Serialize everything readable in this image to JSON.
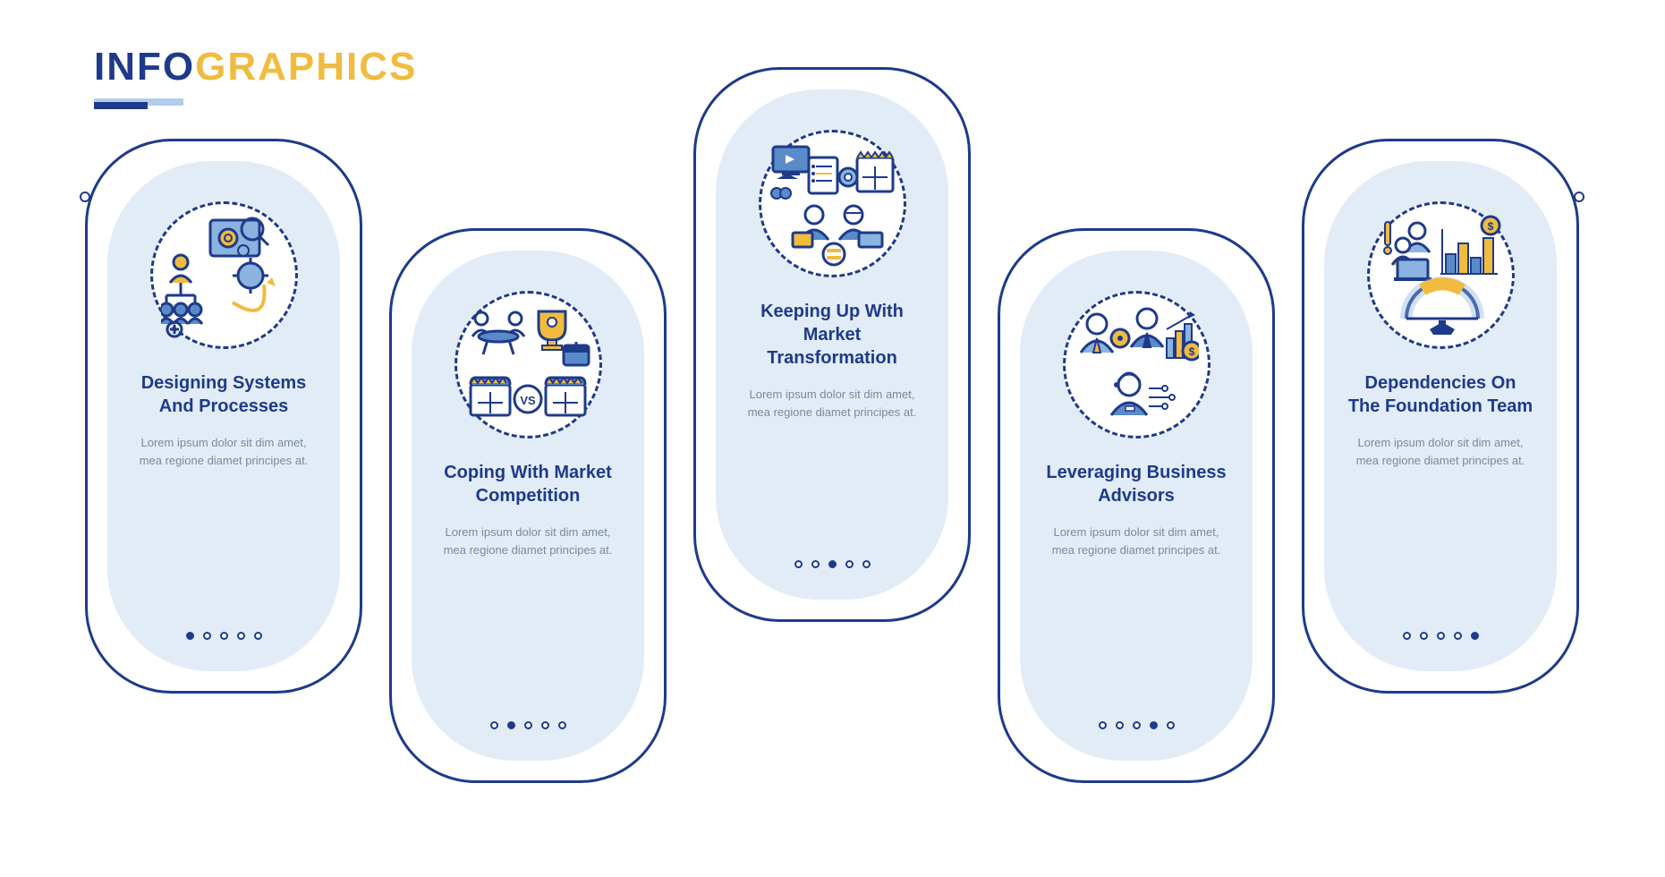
{
  "type": "infographic",
  "background_color": "#ffffff",
  "title": {
    "part1": "INFO",
    "part2": "GRAPHICS",
    "color1": "#1e3a8a",
    "color2": "#f0bb3f",
    "underline_light": "#b3cce9",
    "underline_dark": "#1e3a8a"
  },
  "palette": {
    "primary": "#1e3a8a",
    "accent": "#f0bb3f",
    "light_blue": "#e2ecf7",
    "icon_blue": "#5a8bc9",
    "icon_light_blue": "#8ab3e0",
    "grey_text": "#7a8a9a",
    "white": "#ffffff"
  },
  "card_style": {
    "outer_border_color": "#1e3a8a",
    "outer_border_width": 3,
    "outer_radius": 100,
    "inner_fill": "#e2ecf7",
    "inner_radius": 115,
    "title_fontsize": 20,
    "title_color": "#1e3a8a",
    "desc_fontsize": 13,
    "desc_color": "#7a8a9a",
    "icon_dash_color": "#1e3a8a"
  },
  "cards": [
    {
      "title": "Designing Systems And Processes",
      "desc": "Lorem ipsum dolor sit dim amet, mea regione diamet principes at.",
      "active_dot": 0,
      "offset": "up",
      "icon": "systems"
    },
    {
      "title": "Coping With Market Competition",
      "desc": "Lorem ipsum dolor sit dim amet, mea regione diamet principes at.",
      "active_dot": 1,
      "offset": "down",
      "icon": "competition"
    },
    {
      "title": "Keeping Up With Market Transformation",
      "desc": "Lorem ipsum dolor sit dim amet, mea regione diamet principes at.",
      "active_dot": 2,
      "offset": "c3",
      "icon": "transformation"
    },
    {
      "title": "Leveraging Business Advisors",
      "desc": "Lorem ipsum dolor sit dim amet, mea regione diamet principes at.",
      "active_dot": 3,
      "offset": "down",
      "icon": "advisors"
    },
    {
      "title": "Dependencies On The Foundation Team",
      "desc": "Lorem ipsum dolor sit dim amet, mea regione diamet principes at.",
      "active_dot": 4,
      "offset": "up",
      "icon": "team"
    }
  ],
  "dots_per_card": 5
}
